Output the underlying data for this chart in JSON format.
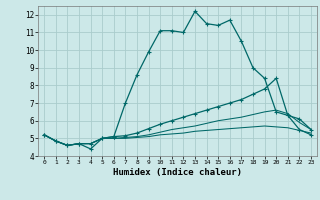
{
  "title": "",
  "xlabel": "Humidex (Indice chaleur)",
  "background_color": "#cce8e8",
  "grid_color": "#aacccc",
  "line_color": "#006868",
  "xlim": [
    -0.5,
    23.5
  ],
  "ylim": [
    4,
    12.5
  ],
  "yticks": [
    4,
    5,
    6,
    7,
    8,
    9,
    10,
    11,
    12
  ],
  "xticks": [
    0,
    1,
    2,
    3,
    4,
    5,
    6,
    7,
    8,
    9,
    10,
    11,
    12,
    13,
    14,
    15,
    16,
    17,
    18,
    19,
    20,
    21,
    22,
    23
  ],
  "line1_x": [
    0,
    1,
    2,
    3,
    4,
    5,
    6,
    7,
    8,
    9,
    10,
    11,
    12,
    13,
    14,
    15,
    16,
    17,
    18,
    19,
    20,
    21,
    22,
    23
  ],
  "line1_y": [
    5.2,
    4.85,
    4.6,
    4.7,
    4.7,
    5.0,
    5.1,
    7.0,
    8.6,
    9.9,
    11.1,
    11.1,
    11.0,
    12.2,
    11.5,
    11.4,
    11.7,
    10.5,
    9.0,
    8.4,
    6.5,
    6.3,
    5.5,
    5.2
  ],
  "line2_x": [
    0,
    1,
    2,
    3,
    4,
    5,
    6,
    7,
    8,
    9,
    10,
    11,
    12,
    13,
    14,
    15,
    16,
    17,
    18,
    19,
    20,
    21,
    22,
    23
  ],
  "line2_y": [
    5.2,
    4.85,
    4.6,
    4.7,
    4.4,
    5.0,
    5.1,
    5.15,
    5.3,
    5.55,
    5.8,
    6.0,
    6.2,
    6.4,
    6.6,
    6.8,
    7.0,
    7.2,
    7.5,
    7.8,
    8.4,
    6.3,
    6.1,
    5.5
  ],
  "line3_x": [
    0,
    1,
    2,
    3,
    4,
    5,
    6,
    7,
    8,
    9,
    10,
    11,
    12,
    13,
    14,
    15,
    16,
    17,
    18,
    19,
    20,
    21,
    22,
    23
  ],
  "line3_y": [
    5.2,
    4.85,
    4.6,
    4.7,
    4.7,
    5.0,
    5.0,
    5.05,
    5.1,
    5.2,
    5.35,
    5.5,
    5.6,
    5.7,
    5.85,
    6.0,
    6.1,
    6.2,
    6.35,
    6.5,
    6.6,
    6.4,
    5.9,
    5.5
  ],
  "line4_x": [
    0,
    1,
    2,
    3,
    4,
    5,
    6,
    7,
    8,
    9,
    10,
    11,
    12,
    13,
    14,
    15,
    16,
    17,
    18,
    19,
    20,
    21,
    22,
    23
  ],
  "line4_y": [
    5.2,
    4.85,
    4.6,
    4.7,
    4.7,
    5.0,
    5.0,
    5.0,
    5.05,
    5.1,
    5.2,
    5.25,
    5.3,
    5.4,
    5.45,
    5.5,
    5.55,
    5.6,
    5.65,
    5.7,
    5.65,
    5.6,
    5.45,
    5.3
  ]
}
